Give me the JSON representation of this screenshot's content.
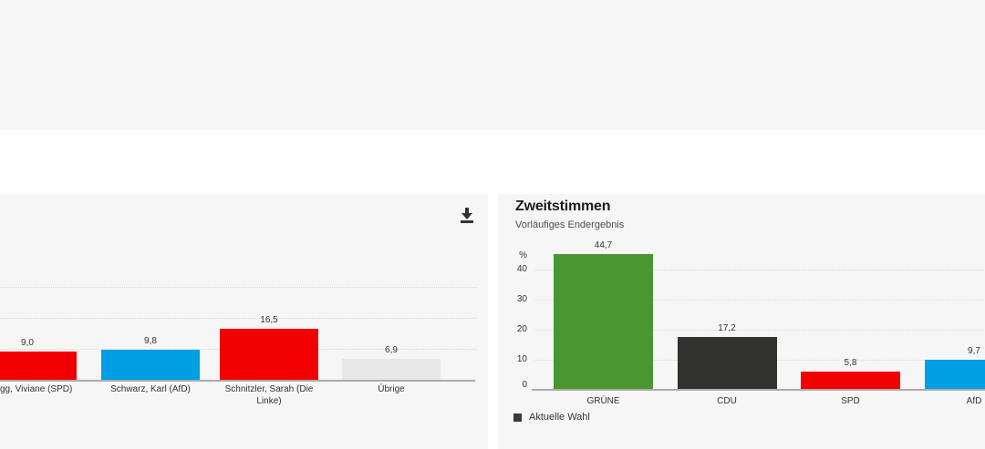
{
  "page": {
    "background": "#ffffff",
    "band_color": "#f6f6f6",
    "panel_color": "#f6f6f6"
  },
  "left_panel": {
    "download_icon": "download-icon",
    "icon_color": "#333333"
  },
  "right_panel": {
    "title": "Zweitstimmen",
    "subtitle": "Vorläufiges Endergebnis",
    "legend_label": "Aktuelle Wahl",
    "legend_swatch_color": "#3a3a38"
  },
  "chart_data": [
    {
      "type": "bar",
      "panel": "left",
      "title": "",
      "categories": [
        "gg, Viviane (SPD)",
        "Schwarz, Karl (AfD)",
        "Schnitzler, Sarah (Die Linke)",
        "Übrige"
      ],
      "values": [
        9.0,
        9.8,
        16.5,
        6.9
      ],
      "value_labels": [
        "9,0",
        "9,8",
        "16,5",
        "6,9"
      ],
      "colors": [
        "#f20000",
        "#009ee3",
        "#f20000",
        "#e8e8e8"
      ],
      "ylim": [
        0,
        30
      ],
      "grid": true,
      "note": "chart partially cut off at left edge of screenshot; first bar and its label are clipped"
    },
    {
      "type": "bar",
      "panel": "right",
      "title": "Zweitstimmen",
      "subtitle": "Vorläufiges Endergebnis",
      "unit": "%",
      "yticks": [
        40,
        30,
        20,
        10,
        0
      ],
      "categories": [
        "GRÜNE",
        "CDU",
        "SPD",
        "AfD"
      ],
      "values": [
        44.7,
        17.2,
        5.8,
        9.7
      ],
      "value_labels": [
        "44,7",
        "17,2",
        "5,8",
        "9,7"
      ],
      "colors": [
        "#4a9630",
        "#323230",
        "#f20000",
        "#009ee3"
      ],
      "legend": "Aktuelle Wahl",
      "legend_position": "bottom-left",
      "ylim": [
        0,
        45
      ],
      "grid": true,
      "note": "last bar (AfD) clipped at right edge of screenshot"
    }
  ]
}
